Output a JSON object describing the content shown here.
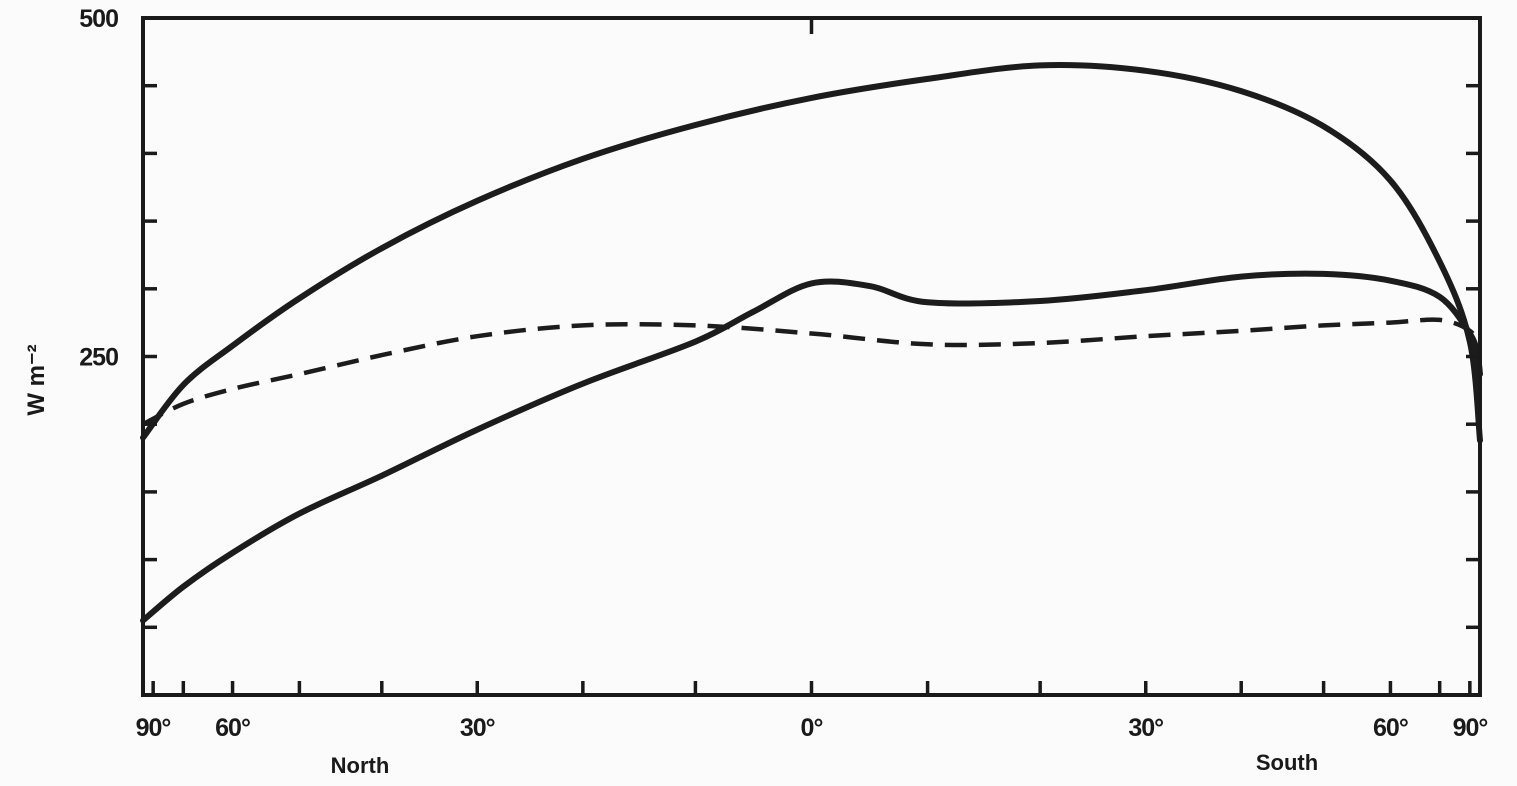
{
  "chart_data": {
    "type": "line",
    "title": "",
    "xlabel": "",
    "ylabel": "W m⁻²",
    "xlim": [
      -90,
      90
    ],
    "ylim": [
      0,
      500
    ],
    "x_tick_positions": [
      -90,
      -60,
      -30,
      0,
      30,
      60,
      90
    ],
    "x_tick_labels": [
      "90°",
      "60°",
      "30°",
      "0°",
      "30°",
      "60°",
      "90°"
    ],
    "y_tick_values": [
      0,
      50,
      100,
      150,
      200,
      250,
      300,
      350,
      400,
      450,
      500
    ],
    "y_tick_labels": [
      {
        "value": 250,
        "label": "250"
      },
      {
        "value": 500,
        "label": "500"
      }
    ],
    "hemisphere_labels": {
      "north": "North",
      "south": "South"
    },
    "x_scale": "sine of latitude",
    "grid": false,
    "series": [
      {
        "style": "solid",
        "x": [
          -90,
          -70,
          -60,
          -50,
          -40,
          -30,
          -20,
          -10,
          0,
          10,
          20,
          30,
          40,
          50,
          60,
          70,
          80,
          90
        ],
        "values": [
          190,
          229,
          258,
          293,
          330,
          365,
          396,
          421,
          441,
          455,
          465,
          461,
          446,
          420,
          380,
          320,
          261,
          188
        ]
      },
      {
        "style": "solid",
        "x": [
          -90,
          -70,
          -60,
          -50,
          -40,
          -30,
          -20,
          -10,
          -5,
          0,
          5,
          10,
          20,
          30,
          40,
          50,
          60,
          70,
          80,
          85,
          90
        ],
        "values": [
          55,
          80,
          105,
          134,
          162,
          196,
          230,
          261,
          283,
          304,
          302,
          290,
          291,
          299,
          309,
          311,
          306,
          294,
          267,
          251,
          237
        ]
      },
      {
        "style": "dashed",
        "x": [
          -90,
          -70,
          -60,
          -50,
          -40,
          -30,
          -20,
          -10,
          0,
          10,
          20,
          30,
          40,
          50,
          60,
          70,
          80,
          90
        ],
        "values": [
          200,
          215,
          226,
          237,
          251,
          265,
          273,
          273,
          267,
          259,
          260,
          265,
          269,
          273,
          275,
          277,
          269,
          256
        ]
      }
    ]
  }
}
